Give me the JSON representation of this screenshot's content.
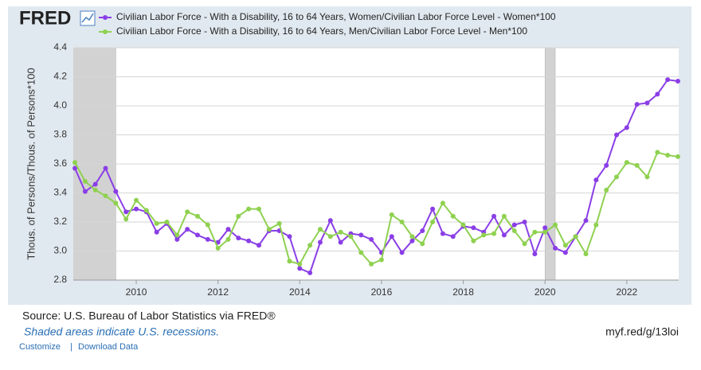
{
  "logo": "FRED",
  "chart_data": {
    "type": "line",
    "y_label": "Thous. of Persons/Thous. of Persons*100",
    "x": [
      2008.5,
      2008.75,
      2009,
      2009.25,
      2009.5,
      2009.75,
      2010,
      2010.25,
      2010.5,
      2010.75,
      2011,
      2011.25,
      2011.5,
      2011.75,
      2012,
      2012.25,
      2012.5,
      2012.75,
      2013,
      2013.25,
      2013.5,
      2013.75,
      2014,
      2014.25,
      2014.5,
      2014.75,
      2015,
      2015.25,
      2015.5,
      2015.75,
      2016,
      2016.25,
      2016.5,
      2016.75,
      2017,
      2017.25,
      2017.5,
      2017.75,
      2018,
      2018.25,
      2018.5,
      2018.75,
      2019,
      2019.25,
      2019.5,
      2019.75,
      2020,
      2020.25,
      2020.5,
      2020.75,
      2021,
      2021.25,
      2021.5,
      2021.75,
      2022,
      2022.25,
      2022.5,
      2022.75,
      2023,
      2023.25
    ],
    "series": [
      {
        "name": "Civilian Labor Force - With a Disability, 16 to 64 Years, Women/Civilian Labor Force Level - Women*100",
        "color": "#8a3ee6",
        "values": [
          3.57,
          3.41,
          3.46,
          3.57,
          3.41,
          3.27,
          3.29,
          3.27,
          3.13,
          3.19,
          3.08,
          3.15,
          3.11,
          3.08,
          3.06,
          3.15,
          3.09,
          3.07,
          3.04,
          3.14,
          3.14,
          3.1,
          2.88,
          2.85,
          3.06,
          3.21,
          3.06,
          3.12,
          3.11,
          3.08,
          2.99,
          3.1,
          2.99,
          3.07,
          3.14,
          3.29,
          3.12,
          3.1,
          3.17,
          3.16,
          3.13,
          3.24,
          3.11,
          3.18,
          3.2,
          2.98,
          3.16,
          3.02,
          2.99,
          3.1,
          3.21,
          3.49,
          3.59,
          3.8,
          3.85,
          4.01,
          4.02,
          4.08,
          4.18,
          4.17
        ]
      },
      {
        "name": "Civilian Labor Force - With a Disability, 16 to 64 Years, Men/Civilian Labor Force Level - Men*100",
        "color": "#8fd150",
        "values": [
          3.61,
          3.48,
          3.42,
          3.38,
          3.33,
          3.22,
          3.35,
          3.28,
          3.19,
          3.2,
          3.11,
          3.27,
          3.24,
          3.18,
          3.02,
          3.08,
          3.24,
          3.29,
          3.29,
          3.15,
          3.19,
          2.93,
          2.91,
          3.04,
          3.15,
          3.1,
          3.13,
          3.1,
          2.99,
          2.91,
          2.94,
          3.25,
          3.2,
          3.1,
          3.05,
          3.2,
          3.33,
          3.24,
          3.18,
          3.07,
          3.11,
          3.12,
          3.24,
          3.14,
          3.05,
          3.13,
          3.13,
          3.18,
          3.04,
          3.1,
          2.98,
          3.18,
          3.42,
          3.51,
          3.61,
          3.59,
          3.51,
          3.68,
          3.66,
          3.65
        ]
      }
    ],
    "xlim": [
      2008.46,
      2023.27
    ],
    "xticks": [
      2010,
      2012,
      2014,
      2016,
      2018,
      2020,
      2022
    ],
    "ylim": [
      2.8,
      4.4
    ],
    "yticks": [
      2.8,
      {
        "value": 3,
        "label": "3.0"
      },
      3.2,
      3.4,
      3.6,
      3.8,
      {
        "value": 4,
        "label": "4.0"
      },
      4.2,
      4.4
    ],
    "grid": true,
    "recessions": [
      [
        2007.92,
        2009.5
      ],
      [
        2020.0,
        2020.25
      ]
    ]
  },
  "source": "Source: U.S. Bureau of Labor Statistics via FRED®",
  "note": "Shaded areas indicate U.S. recessions.",
  "short_url": "myf.red/g/13loi",
  "links": [
    "Customize",
    "Download Data"
  ],
  "separator": "|"
}
